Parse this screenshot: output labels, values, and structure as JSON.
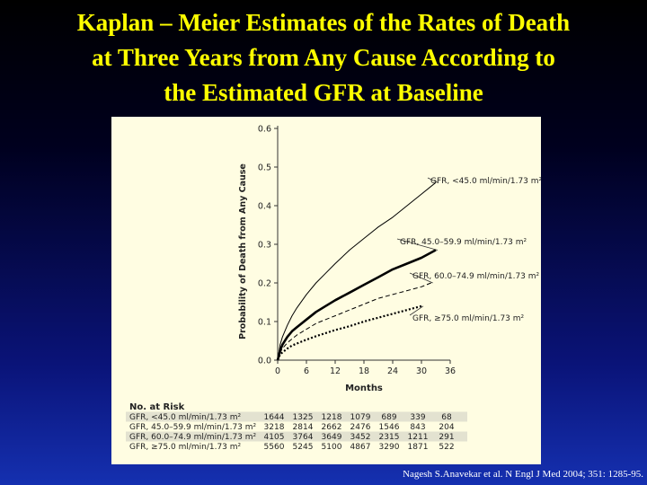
{
  "slide": {
    "title_lines": [
      "Kaplan – Meier Estimates of the Rates of Death",
      "at Three Years from Any Cause According to",
      "the Estimated GFR at Baseline"
    ],
    "citation": "Nagesh S.Anavekar et al. N Engl J Med 2004; 351: 1285-95."
  },
  "colors": {
    "title": "#ffff00",
    "panel_background": "#fffde2",
    "risk_row_band": "#e3e2d0",
    "curve": "#000000"
  },
  "chart_data": {
    "type": "line",
    "title": "",
    "xlabel": "Months",
    "ylabel": "Probability of Death from Any Cause",
    "xlim": [
      0,
      36
    ],
    "ylim": [
      0,
      0.6
    ],
    "xticks": [
      0,
      6,
      12,
      18,
      24,
      30,
      36
    ],
    "yticks": [
      0.0,
      0.1,
      0.2,
      0.3,
      0.4,
      0.5,
      0.6
    ],
    "tick_labels_x": [
      "0",
      "6",
      "12",
      "18",
      "24",
      "30",
      "36"
    ],
    "tick_labels_y": [
      "0.0",
      "0.1",
      "0.2",
      "0.3",
      "0.4",
      "0.5",
      "0.6"
    ],
    "grid": false,
    "legend": "labels placed at right end of each curve",
    "series": [
      {
        "name": "GFR, <45.0 ml/min/1.73 m²",
        "style": "thin-solid",
        "x": [
          0,
          0.5,
          1,
          2,
          3,
          4,
          6,
          8,
          10,
          12,
          15,
          18,
          21,
          24,
          27,
          30,
          33
        ],
        "y": [
          0,
          0.04,
          0.06,
          0.09,
          0.115,
          0.135,
          0.17,
          0.2,
          0.225,
          0.25,
          0.285,
          0.315,
          0.345,
          0.37,
          0.4,
          0.43,
          0.46
        ]
      },
      {
        "name": "GFR, 45.0–59.9 ml/min/1.73 m²",
        "style": "thick-solid",
        "x": [
          0,
          0.5,
          1,
          2,
          3,
          4,
          6,
          8,
          10,
          12,
          15,
          18,
          21,
          24,
          27,
          30,
          33
        ],
        "y": [
          0,
          0.025,
          0.04,
          0.06,
          0.075,
          0.085,
          0.105,
          0.125,
          0.14,
          0.155,
          0.175,
          0.195,
          0.215,
          0.235,
          0.25,
          0.265,
          0.285
        ]
      },
      {
        "name": "GFR, 60.0–74.9 ml/min/1.73 m²",
        "style": "dashed",
        "x": [
          0,
          0.5,
          1,
          2,
          3,
          4,
          6,
          8,
          10,
          12,
          15,
          18,
          21,
          24,
          27,
          30,
          32
        ],
        "y": [
          0,
          0.02,
          0.03,
          0.045,
          0.055,
          0.065,
          0.08,
          0.095,
          0.105,
          0.115,
          0.13,
          0.145,
          0.16,
          0.17,
          0.18,
          0.19,
          0.2
        ]
      },
      {
        "name": "GFR, ≥75.0 ml/min/1.73 m²",
        "style": "dotted-thick",
        "x": [
          0,
          0.5,
          1,
          2,
          3,
          4,
          6,
          8,
          10,
          12,
          15,
          18,
          21,
          24,
          27,
          30
        ],
        "y": [
          0,
          0.015,
          0.02,
          0.03,
          0.038,
          0.043,
          0.053,
          0.062,
          0.07,
          0.078,
          0.088,
          0.1,
          0.11,
          0.12,
          0.13,
          0.14
        ]
      }
    ],
    "risk_table": {
      "title": "No. at Risk",
      "rows": [
        {
          "label": "GFR, <45.0 ml/min/1.73 m²",
          "values": [
            "1644",
            "1325",
            "1218",
            "1079",
            "689",
            "339",
            "68"
          ]
        },
        {
          "label": "GFR, 45.0–59.9 ml/min/1.73 m²",
          "values": [
            "3218",
            "2814",
            "2662",
            "2476",
            "1546",
            "843",
            "204"
          ]
        },
        {
          "label": "GFR, 60.0–74.9 ml/min/1.73 m²",
          "values": [
            "4105",
            "3764",
            "3649",
            "3452",
            "2315",
            "1211",
            "291"
          ]
        },
        {
          "label": "GFR, ≥75.0 ml/min/1.73 m²",
          "values": [
            "5560",
            "5245",
            "5100",
            "4867",
            "3290",
            "1871",
            "522"
          ]
        }
      ]
    }
  }
}
